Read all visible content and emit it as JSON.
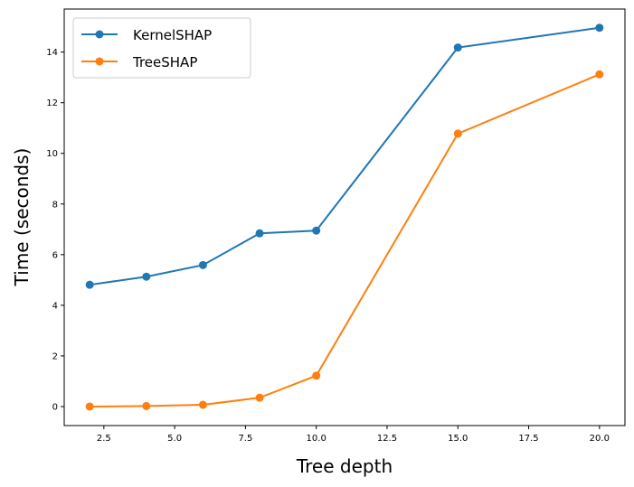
{
  "chart_data": {
    "type": "line",
    "title": "",
    "xlabel": "Tree depth",
    "ylabel": "Time (seconds)",
    "xlim": [
      1.1,
      20.9
    ],
    "ylim": [
      -0.75,
      15.7
    ],
    "xticks": [
      2.5,
      5.0,
      7.5,
      10.0,
      12.5,
      15.0,
      17.5,
      20.0
    ],
    "xtick_labels": [
      "2.5",
      "5.0",
      "7.5",
      "10.0",
      "12.5",
      "15.0",
      "17.5",
      "20.0"
    ],
    "yticks": [
      0,
      2,
      4,
      6,
      8,
      10,
      12,
      14
    ],
    "ytick_labels": [
      "0",
      "2",
      "4",
      "6",
      "8",
      "10",
      "12",
      "14"
    ],
    "grid": false,
    "legend_position": "top-left",
    "x": [
      2,
      4,
      6,
      8,
      10,
      15,
      20
    ],
    "series": [
      {
        "name": "KernelSHAP",
        "color": "#1f77b4",
        "values": [
          4.81,
          5.13,
          5.59,
          6.84,
          6.95,
          14.18,
          14.96
        ]
      },
      {
        "name": "TreeSHAP",
        "color": "#ff7f0e",
        "values": [
          0.0,
          0.02,
          0.07,
          0.35,
          1.22,
          10.78,
          13.12
        ]
      }
    ]
  }
}
